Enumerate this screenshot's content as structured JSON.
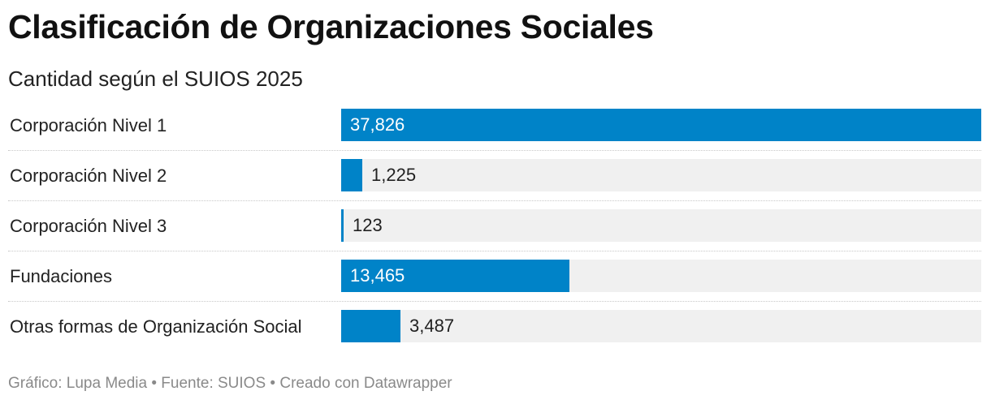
{
  "header": {
    "title": "Clasificación de Organizaciones Sociales",
    "subtitle": "Cantidad según el SUIOS 2025"
  },
  "footer": {
    "text": "Gráfico: Lupa Media • Fuente: SUIOS • Creado con Datawrapper"
  },
  "colors": {
    "bar": "#0083c8",
    "track": "#f0f0f0",
    "label_inside": "#ffffff",
    "label_outside": "#222222"
  },
  "chart_data": {
    "type": "bar",
    "orientation": "horizontal",
    "title": "Clasificación de Organizaciones Sociales",
    "subtitle": "Cantidad según el SUIOS 2025",
    "categories": [
      "Corporación Nivel 1",
      "Corporación Nivel 2",
      "Corporación Nivel 3",
      "Fundaciones",
      "Otras formas de Organización Social"
    ],
    "values": [
      37826,
      1225,
      123,
      13465,
      3487
    ],
    "value_labels": [
      "37,826",
      "1,225",
      "123",
      "13,465",
      "3,487"
    ],
    "xlim": [
      0,
      37826
    ],
    "xlabel": "",
    "ylabel": "",
    "grid": false,
    "legend": "none"
  }
}
